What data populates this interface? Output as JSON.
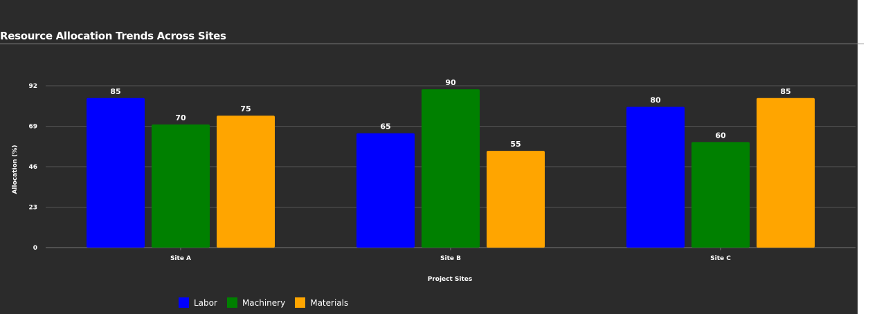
{
  "chart_data": {
    "type": "bar",
    "title": "Resource Allocation Trends Across Sites",
    "xlabel": "Project Sites",
    "ylabel": "Allocation (%)",
    "categories": [
      "Site A",
      "Site B",
      "Site C"
    ],
    "series": [
      {
        "name": "Labor",
        "color": "#0000ff",
        "values": [
          85,
          65,
          80
        ]
      },
      {
        "name": "Machinery",
        "color": "#008000",
        "values": [
          70,
          90,
          60
        ]
      },
      {
        "name": "Materials",
        "color": "#ffa500",
        "values": [
          75,
          55,
          85
        ]
      }
    ],
    "ylim": [
      0,
      92
    ],
    "yticks": [
      0,
      23,
      46,
      69,
      92
    ],
    "grid": true,
    "legend_position": "bottom-left"
  },
  "colors": {
    "background": "#2b2b2b",
    "grid": "#555555",
    "text": "#ffffff"
  }
}
